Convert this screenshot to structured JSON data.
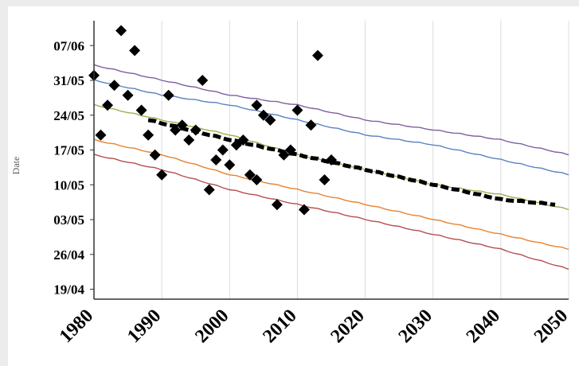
{
  "chart_data": {
    "type": "scatter",
    "title": "",
    "xlabel": "",
    "ylabel": "Date",
    "xlim": [
      1980,
      2050
    ],
    "ylim": [
      "2000-04-17",
      "2000-06-12"
    ],
    "xticks": [
      "1980",
      "1990",
      "2000",
      "2010",
      "2020",
      "2030",
      "2040",
      "2050"
    ],
    "yticks": [
      "19/04",
      "26/04",
      "03/05",
      "10/05",
      "17/05",
      "24/05",
      "31/05",
      "07/06"
    ],
    "grid": "vertical",
    "legend": "none",
    "observed": {
      "marker": "diamond",
      "color": "#000000",
      "points": [
        {
          "x": 1980,
          "y": "2000-06-01"
        },
        {
          "x": 1981,
          "y": "2000-05-20"
        },
        {
          "x": 1982,
          "y": "2000-05-26"
        },
        {
          "x": 1983,
          "y": "2000-05-30"
        },
        {
          "x": 1984,
          "y": "2000-06-10"
        },
        {
          "x": 1985,
          "y": "2000-05-28"
        },
        {
          "x": 1986,
          "y": "2000-06-06"
        },
        {
          "x": 1987,
          "y": "2000-05-25"
        },
        {
          "x": 1988,
          "y": "2000-05-20"
        },
        {
          "x": 1989,
          "y": "2000-05-16"
        },
        {
          "x": 1990,
          "y": "2000-05-12"
        },
        {
          "x": 1991,
          "y": "2000-05-28"
        },
        {
          "x": 1992,
          "y": "2000-05-21"
        },
        {
          "x": 1993,
          "y": "2000-05-22"
        },
        {
          "x": 1994,
          "y": "2000-05-19"
        },
        {
          "x": 1995,
          "y": "2000-05-21"
        },
        {
          "x": 1996,
          "y": "2000-05-31"
        },
        {
          "x": 1997,
          "y": "2000-05-09"
        },
        {
          "x": 1998,
          "y": "2000-05-15"
        },
        {
          "x": 1999,
          "y": "2000-05-17"
        },
        {
          "x": 2000,
          "y": "2000-05-14"
        },
        {
          "x": 2001,
          "y": "2000-05-18"
        },
        {
          "x": 2002,
          "y": "2000-05-19"
        },
        {
          "x": 2003,
          "y": "2000-05-12"
        },
        {
          "x": 2004,
          "y": "2000-05-11"
        },
        {
          "x": 2004,
          "y": "2000-05-26"
        },
        {
          "x": 2005,
          "y": "2000-05-24"
        },
        {
          "x": 2006,
          "y": "2000-05-23"
        },
        {
          "x": 2007,
          "y": "2000-05-06"
        },
        {
          "x": 2008,
          "y": "2000-05-16"
        },
        {
          "x": 2009,
          "y": "2000-05-17"
        },
        {
          "x": 2010,
          "y": "2000-05-25"
        },
        {
          "x": 2011,
          "y": "2000-05-05"
        },
        {
          "x": 2012,
          "y": "2000-05-22"
        },
        {
          "x": 2013,
          "y": "2000-06-05"
        },
        {
          "x": 2014,
          "y": "2000-05-11"
        },
        {
          "x": 2015,
          "y": "2000-05-15"
        }
      ]
    },
    "series": [
      {
        "color": "#7f5fa0",
        "x": [
          1980,
          1990,
          2000,
          2010,
          2020,
          2030,
          2040,
          2050
        ],
        "y": [
          "2000-06-03",
          "2000-05-31",
          "2000-05-28",
          "2000-05-26",
          "2000-05-23",
          "2000-05-21",
          "2000-05-19",
          "2000-05-16"
        ]
      },
      {
        "color": "#5b82c0",
        "x": [
          1980,
          1990,
          2000,
          2010,
          2020,
          2030,
          2040,
          2050
        ],
        "y": [
          "2000-05-31",
          "2000-05-28",
          "2000-05-26",
          "2000-05-23",
          "2000-05-20",
          "2000-05-18",
          "2000-05-15",
          "2000-05-12"
        ]
      },
      {
        "color": "#9bb14e",
        "x": [
          1980,
          1990,
          2000,
          2010,
          2020,
          2030,
          2040,
          2050
        ],
        "y": [
          "2000-05-26",
          "2000-05-23",
          "2000-05-20",
          "2000-05-16",
          "2000-05-13",
          "2000-05-10",
          "2000-05-08",
          "2000-05-05"
        ]
      },
      {
        "color": "#000000",
        "dash": true,
        "x": [
          1988,
          2000,
          2010,
          2020,
          2030,
          2040,
          2048
        ],
        "y": [
          "2000-05-23",
          "2000-05-19",
          "2000-05-16",
          "2000-05-13",
          "2000-05-10",
          "2000-05-07",
          "2000-05-06"
        ]
      },
      {
        "color": "#e8822e",
        "x": [
          1980,
          1990,
          2000,
          2010,
          2020,
          2030,
          2040,
          2050
        ],
        "y": [
          "2000-05-19",
          "2000-05-16",
          "2000-05-12",
          "2000-05-09",
          "2000-05-06",
          "2000-05-03",
          "2000-04-30",
          "2000-04-27"
        ]
      },
      {
        "color": "#b54e4e",
        "x": [
          1980,
          1990,
          2000,
          2010,
          2020,
          2030,
          2040,
          2050
        ],
        "y": [
          "2000-05-16",
          "2000-05-13",
          "2000-05-09",
          "2000-05-06",
          "2000-05-03",
          "2000-04-30",
          "2000-04-27",
          "2000-04-23"
        ]
      }
    ]
  }
}
